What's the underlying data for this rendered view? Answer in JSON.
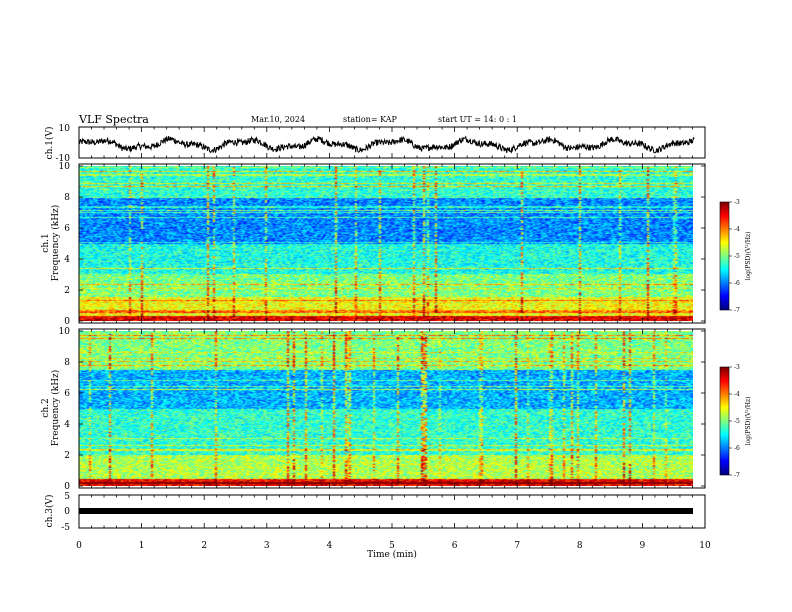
{
  "header": {
    "title": "VLF Spectra",
    "date": "Mar.10, 2024",
    "station": "station= KAP",
    "start": "start  UT  =  14: 0  : 1"
  },
  "chart_data": [
    {
      "type": "line",
      "panel": "ch1-waveform",
      "ylabel": "ch.1(V)",
      "ylim": [
        -10,
        10
      ],
      "yticks": [
        "10",
        "-10"
      ],
      "xlim": [
        0,
        10
      ],
      "trace_span_min": [
        0,
        9.83
      ],
      "grid": false
    },
    {
      "type": "heatmap",
      "panel": "ch1-spectrogram",
      "ylabel_lines": [
        "ch.1",
        "Frequency  (kHz)"
      ],
      "ylim": [
        0,
        10
      ],
      "yticks": [
        "0",
        "2",
        "4",
        "6",
        "8",
        "10"
      ],
      "xlim": [
        0,
        10
      ],
      "data_span_min": [
        0,
        9.83
      ],
      "band_structure_khz": [
        {
          "freq": [
            0.0,
            0.3
          ],
          "level": "red/orange"
        },
        {
          "freq": [
            0.3,
            1.5
          ],
          "level": "yellow-green"
        },
        {
          "freq": [
            1.5,
            3.0
          ],
          "level": "green/cyan"
        },
        {
          "freq": [
            3.0,
            5.0
          ],
          "level": "cyan"
        },
        {
          "freq": [
            5.0,
            8.0
          ],
          "level": "blue"
        },
        {
          "freq": [
            8.0,
            10.0
          ],
          "level": "green/cyan"
        }
      ],
      "colorbar": {
        "label": "log(PSD)(V²/Hz)",
        "range": [
          -7,
          -3
        ],
        "ticks": [
          "-3",
          "-4",
          "-5",
          "-6",
          "-7"
        ]
      }
    },
    {
      "type": "heatmap",
      "panel": "ch2-spectrogram",
      "ylabel_lines": [
        "ch.2",
        "Frequency  (kHz)"
      ],
      "ylim": [
        0,
        10
      ],
      "yticks": [
        "0",
        "2",
        "4",
        "6",
        "8",
        "10"
      ],
      "xlim": [
        0,
        10
      ],
      "data_span_min": [
        0,
        9.83
      ],
      "band_structure_khz": [
        {
          "freq": [
            0.0,
            0.4
          ],
          "level": "red/orange"
        },
        {
          "freq": [
            0.4,
            2.0
          ],
          "level": "green/yellow"
        },
        {
          "freq": [
            2.0,
            5.0
          ],
          "level": "cyan"
        },
        {
          "freq": [
            5.0,
            7.5
          ],
          "level": "blue"
        },
        {
          "freq": [
            7.5,
            10.0
          ],
          "level": "green"
        }
      ],
      "colorbar": {
        "label": "log(PSD)(V²/Hz)",
        "range": [
          -7,
          -3
        ],
        "ticks": [
          "-3",
          "-4",
          "-5",
          "-6",
          "-7"
        ]
      }
    },
    {
      "type": "line",
      "panel": "ch3-waveform",
      "ylabel": "ch.3(V)",
      "ylim": [
        -5,
        5
      ],
      "yticks": [
        "5",
        "0",
        "-5"
      ],
      "xlim": [
        0,
        10
      ],
      "xticks": [
        "0",
        "1",
        "2",
        "3",
        "4",
        "5",
        "6",
        "7",
        "8",
        "9",
        "10"
      ],
      "xlabel": "Time  (min)",
      "trace_span_min": [
        0,
        9.83
      ],
      "trace_level_v": 0
    }
  ],
  "colors": {
    "axis": "#000000",
    "trace": "#000000"
  }
}
